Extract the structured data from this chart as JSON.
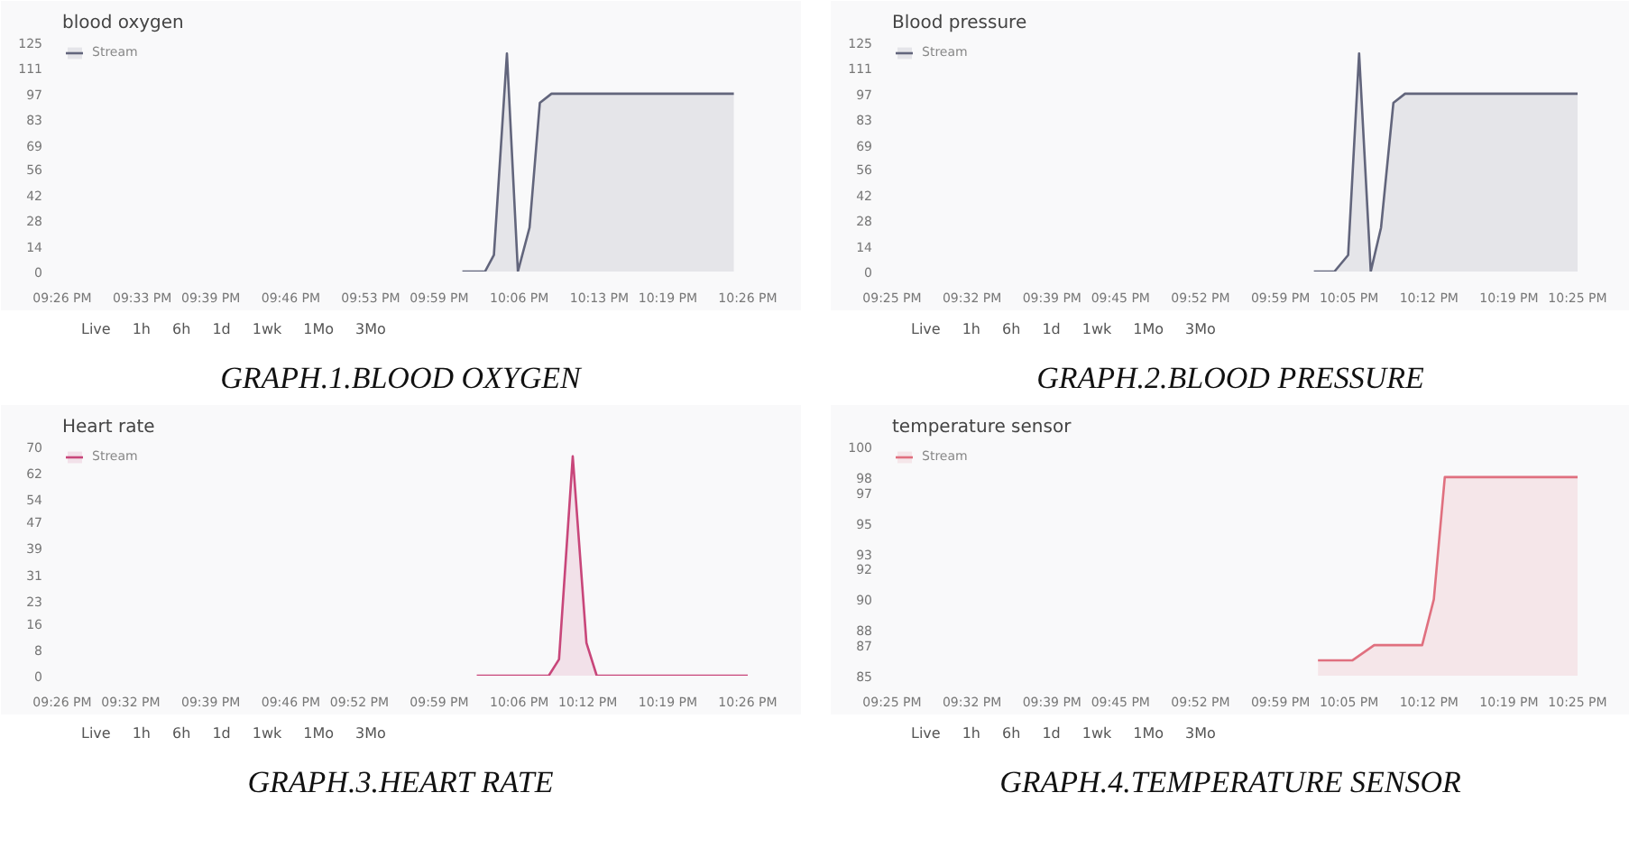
{
  "chart_data": [
    {
      "type": "area",
      "title": "blood oxygen",
      "subtitle": "GRAPH.1.BLOOD OXYGEN",
      "annotations": [
        "Live",
        "1h",
        "6h",
        "1d",
        "1wk",
        "1Mo",
        "3Mo"
      ],
      "legend": "top left",
      "x": [
        22.017,
        22.05,
        22.063,
        22.082,
        22.098,
        22.115,
        22.13,
        22.147,
        22.413
      ],
      "series": [
        {
          "name": "Stream",
          "color": "#62657c",
          "values": [
            0,
            0,
            9,
            119,
            0,
            24,
            92,
            97,
            97
          ]
        }
      ],
      "xlim": [
        21.4333,
        22.4333
      ],
      "ylim": [
        0,
        125
      ],
      "yticks": [
        0,
        14,
        28,
        42,
        56,
        69,
        83,
        97,
        111,
        125
      ],
      "xticks": [
        {
          "value": 21.4333,
          "label": "09:26 PM"
        },
        {
          "value": 21.55,
          "label": "09:33 PM"
        },
        {
          "value": 21.65,
          "label": "09:39 PM"
        },
        {
          "value": 21.7667,
          "label": "09:46 PM"
        },
        {
          "value": 21.8833,
          "label": "09:53 PM"
        },
        {
          "value": 21.9833,
          "label": "09:59 PM"
        },
        {
          "value": 22.1,
          "label": "10:06 PM"
        },
        {
          "value": 22.2167,
          "label": "10:13 PM"
        },
        {
          "value": 22.3167,
          "label": "10:19 PM"
        },
        {
          "value": 22.4333,
          "label": "10:26 PM"
        }
      ]
    },
    {
      "type": "area",
      "title": "Blood pressure",
      "subtitle": "GRAPH.2.BLOOD PRESSURE",
      "annotations": [
        "Live",
        "1h",
        "6h",
        "1d",
        "1wk",
        "1Mo",
        "3Mo"
      ],
      "legend": "top left",
      "x": [
        22.032,
        22.062,
        22.082,
        22.098,
        22.115,
        22.13,
        22.148,
        22.165,
        22.4167
      ],
      "series": [
        {
          "name": "Stream",
          "color": "#62657c",
          "values": [
            0,
            0,
            9,
            119,
            0,
            24,
            92,
            97,
            97
          ]
        }
      ],
      "xlim": [
        21.4167,
        22.4167
      ],
      "ylim": [
        0,
        125
      ],
      "yticks": [
        0,
        14,
        28,
        42,
        56,
        69,
        83,
        97,
        111,
        125
      ],
      "xticks": [
        {
          "value": 21.4167,
          "label": "09:25 PM"
        },
        {
          "value": 21.5333,
          "label": "09:32 PM"
        },
        {
          "value": 21.65,
          "label": "09:39 PM"
        },
        {
          "value": 21.75,
          "label": "09:45 PM"
        },
        {
          "value": 21.8667,
          "label": "09:52 PM"
        },
        {
          "value": 21.9833,
          "label": "09:59 PM"
        },
        {
          "value": 22.0833,
          "label": "10:05 PM"
        },
        {
          "value": 22.2,
          "label": "10:12 PM"
        },
        {
          "value": 22.3167,
          "label": "10:19 PM"
        },
        {
          "value": 22.4167,
          "label": "10:25 PM"
        }
      ]
    },
    {
      "type": "area",
      "title": "Heart rate",
      "subtitle": "GRAPH.3.HEART RATE",
      "annotations": [
        "Live",
        "1h",
        "6h",
        "1d",
        "1wk",
        "1Mo",
        "3Mo"
      ],
      "legend": "top left",
      "x": [
        22.038,
        22.143,
        22.158,
        22.178,
        22.198,
        22.213,
        22.4333
      ],
      "series": [
        {
          "name": "Stream",
          "color": "#c8467a",
          "values": [
            0,
            0,
            5,
            67,
            10,
            0,
            0
          ]
        }
      ],
      "xlim": [
        21.4333,
        22.4333
      ],
      "ylim": [
        0,
        70
      ],
      "yticks": [
        0,
        8,
        16,
        23,
        31,
        39,
        47,
        54,
        62,
        70
      ],
      "xticks": [
        {
          "value": 21.4333,
          "label": "09:26 PM"
        },
        {
          "value": 21.5333,
          "label": "09:32 PM"
        },
        {
          "value": 21.65,
          "label": "09:39 PM"
        },
        {
          "value": 21.7667,
          "label": "09:46 PM"
        },
        {
          "value": 21.8667,
          "label": "09:52 PM"
        },
        {
          "value": 21.9833,
          "label": "09:59 PM"
        },
        {
          "value": 22.1,
          "label": "10:06 PM"
        },
        {
          "value": 22.2,
          "label": "10:12 PM"
        },
        {
          "value": 22.3167,
          "label": "10:19 PM"
        },
        {
          "value": 22.4333,
          "label": "10:26 PM"
        }
      ]
    },
    {
      "type": "area",
      "title": "temperature sensor",
      "subtitle": "GRAPH.4.TEMPERATURE SENSOR",
      "annotations": [
        "Live",
        "1h",
        "6h",
        "1d",
        "1wk",
        "1Mo",
        "3Mo"
      ],
      "legend": "top left",
      "x": [
        22.038,
        22.088,
        22.12,
        22.19,
        22.207,
        22.223,
        22.4167
      ],
      "series": [
        {
          "name": "Stream",
          "color": "#e0707f",
          "values": [
            86,
            86,
            87,
            87,
            90,
            98,
            98
          ]
        }
      ],
      "xlim": [
        21.4167,
        22.4167
      ],
      "ylim": [
        85,
        100
      ],
      "yticks": [
        85,
        87,
        88,
        90,
        92,
        93,
        95,
        97,
        98,
        100
      ],
      "xticks": [
        {
          "value": 21.4167,
          "label": "09:25 PM"
        },
        {
          "value": 21.5333,
          "label": "09:32 PM"
        },
        {
          "value": 21.65,
          "label": "09:39 PM"
        },
        {
          "value": 21.75,
          "label": "09:45 PM"
        },
        {
          "value": 21.8667,
          "label": "09:52 PM"
        },
        {
          "value": 21.9833,
          "label": "09:59 PM"
        },
        {
          "value": 22.0833,
          "label": "10:05 PM"
        },
        {
          "value": 22.2,
          "label": "10:12 PM"
        },
        {
          "value": 22.3167,
          "label": "10:19 PM"
        },
        {
          "value": 22.4167,
          "label": "10:25 PM"
        }
      ]
    }
  ]
}
